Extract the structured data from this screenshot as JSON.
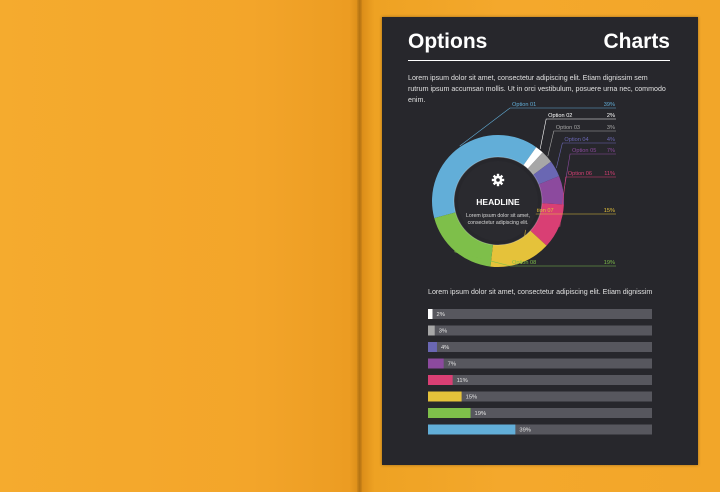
{
  "document": {
    "title_left": "Options",
    "title_right": "Charts",
    "intro_text": "Lorem ipsum dolor sit amet, consectetur adipiscing elit. Etiam dignissim sem rutrum ipsum accumsan mollis. Ut in orci vestibulum, posuere urna nec, commodo enim.",
    "donut_headline": "HEADLINE",
    "donut_caption_line1": "Lorem ipsum dolor sit amet,",
    "donut_caption_line2": "consectetur adipiscing elit.",
    "center_icon": "gear-icon",
    "bar_intro_text": "Lorem ipsum dolor sit amet, consectetur adipiscing elit. Etiam dignissim"
  },
  "chart_data": [
    {
      "type": "pie",
      "title": "",
      "categories": [
        "Option 01",
        "Option 02",
        "Option 03",
        "Option 04",
        "Option 05",
        "Option 06",
        "Option 07",
        "Option 08"
      ],
      "values": [
        39,
        2,
        3,
        4,
        7,
        11,
        15,
        19
      ],
      "labels": [
        "39%",
        "2%",
        "3%",
        "4%",
        "7%",
        "11%",
        "15%",
        "19%"
      ],
      "colors": [
        "#62aed8",
        "#ffffff",
        "#a7a7a7",
        "#6a67b3",
        "#8c4a9e",
        "#d93f74",
        "#e5c23a",
        "#7ebf4a"
      ]
    },
    {
      "type": "bar",
      "orientation": "horizontal",
      "title": "",
      "values": [
        2,
        3,
        4,
        7,
        11,
        15,
        19,
        39
      ],
      "labels": [
        "2%",
        "3%",
        "4%",
        "7%",
        "11%",
        "15%",
        "19%",
        "39%"
      ],
      "colors": [
        "#ffffff",
        "#a7a7a7",
        "#6a67b3",
        "#8c4a9e",
        "#d93f74",
        "#e5c23a",
        "#7ebf4a",
        "#62aed8"
      ],
      "xlim": [
        0,
        100
      ]
    }
  ]
}
